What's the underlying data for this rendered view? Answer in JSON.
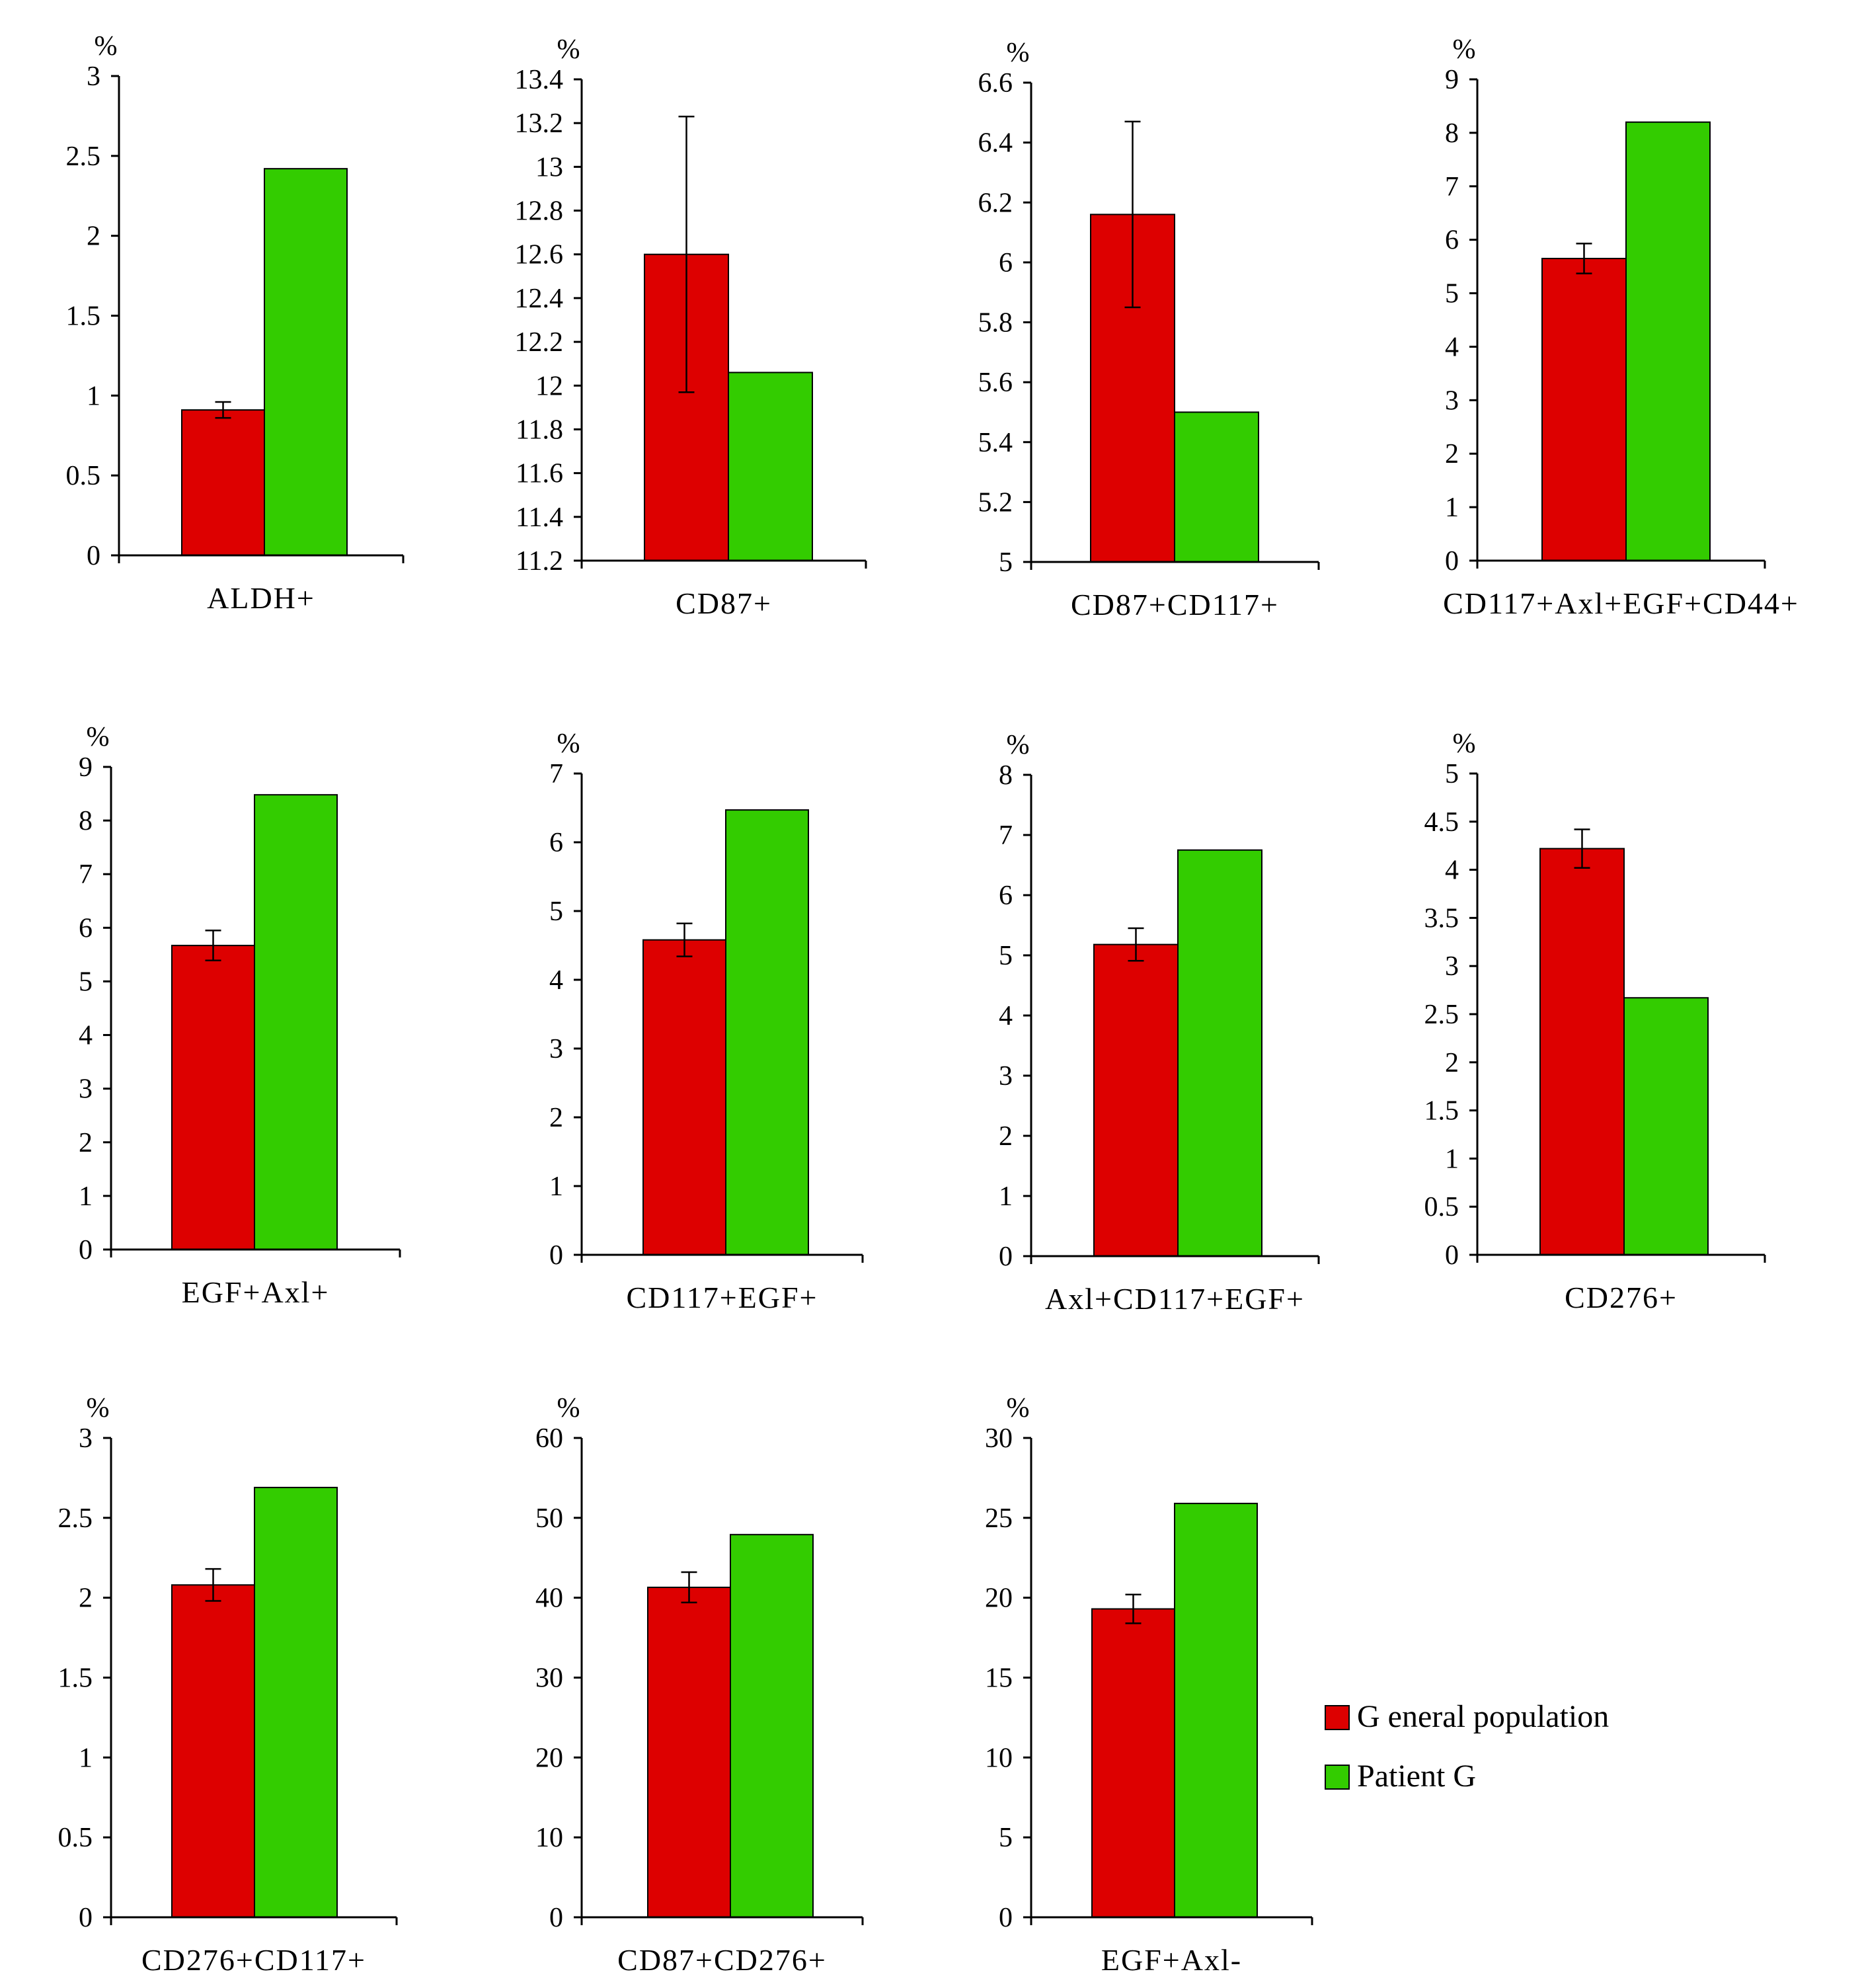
{
  "legend": {
    "items": [
      {
        "label": "G eneral population",
        "color": "#dd0000"
      },
      {
        "label": "Patient G",
        "color": "#33cc00"
      }
    ],
    "placement": "right, third row"
  },
  "colors": {
    "general_population": "#dd0000",
    "patient": "#33cc00",
    "bar_outline": "#000000",
    "axis": "#000000"
  },
  "chart_data": [
    {
      "type": "bar",
      "ylabel": "%",
      "xlabel": "",
      "categories": [
        "ALDH+"
      ],
      "ylim": [
        0,
        3
      ],
      "yticks": [
        "0",
        "0.5",
        "1",
        "1.5",
        "2",
        "2.5",
        "3"
      ],
      "series": [
        {
          "name": "G eneral population",
          "values": [
            0.91
          ],
          "error": [
            0.05
          ]
        },
        {
          "name": "Patient G",
          "values": [
            2.42
          ]
        }
      ]
    },
    {
      "type": "bar",
      "ylabel": "%",
      "xlabel": "",
      "categories": [
        "CD87+"
      ],
      "ylim": [
        11.2,
        13.4
      ],
      "yticks": [
        "11.2",
        "11.4",
        "11.6",
        "11.8",
        "12",
        "12.2",
        "12.4",
        "12.6",
        "12.8",
        "13",
        "13.2",
        "13.4"
      ],
      "series": [
        {
          "name": "G eneral population",
          "values": [
            12.6
          ],
          "error": [
            0.63
          ]
        },
        {
          "name": "Patient G",
          "values": [
            12.06
          ]
        }
      ]
    },
    {
      "type": "bar",
      "ylabel": "%",
      "xlabel": "",
      "categories": [
        "CD87+CD117+"
      ],
      "ylim": [
        5,
        6.6
      ],
      "yticks": [
        "5",
        "5.2",
        "5.4",
        "5.6",
        "5.8",
        "6",
        "6.2",
        "6.4",
        "6.6"
      ],
      "series": [
        {
          "name": "G eneral population",
          "values": [
            6.16
          ],
          "error": [
            0.31
          ]
        },
        {
          "name": "Patient G",
          "values": [
            5.5
          ]
        }
      ]
    },
    {
      "type": "bar",
      "ylabel": "%",
      "xlabel": "",
      "categories": [
        "CD117+Axl+EGF+CD44+"
      ],
      "ylim": [
        0,
        9
      ],
      "yticks": [
        "0",
        "1",
        "2",
        "3",
        "4",
        "5",
        "6",
        "7",
        "8",
        "9"
      ],
      "series": [
        {
          "name": "G eneral population",
          "values": [
            5.65
          ],
          "error": [
            0.28
          ]
        },
        {
          "name": "Patient G",
          "values": [
            8.2
          ]
        }
      ]
    },
    {
      "type": "bar",
      "ylabel": "%",
      "xlabel": "",
      "categories": [
        "EGF+Axl+"
      ],
      "ylim": [
        0,
        9
      ],
      "yticks": [
        "0",
        "1",
        "2",
        "3",
        "4",
        "5",
        "6",
        "7",
        "8",
        "9"
      ],
      "series": [
        {
          "name": "G eneral population",
          "values": [
            5.67
          ],
          "error": [
            0.28
          ]
        },
        {
          "name": "Patient G",
          "values": [
            8.48
          ]
        }
      ]
    },
    {
      "type": "bar",
      "ylabel": "%",
      "xlabel": "",
      "categories": [
        "CD117+EGF+"
      ],
      "ylim": [
        0,
        7
      ],
      "yticks": [
        "0",
        "1",
        "2",
        "3",
        "4",
        "5",
        "6",
        "7"
      ],
      "series": [
        {
          "name": "G eneral population",
          "values": [
            4.58
          ],
          "error": [
            0.24
          ]
        },
        {
          "name": "Patient G",
          "values": [
            6.47
          ]
        }
      ]
    },
    {
      "type": "bar",
      "ylabel": "%",
      "xlabel": "",
      "categories": [
        "Axl+CD117+EGF+"
      ],
      "ylim": [
        0,
        8
      ],
      "yticks": [
        "0",
        "1",
        "2",
        "3",
        "4",
        "5",
        "6",
        "7",
        "8"
      ],
      "series": [
        {
          "name": "G eneral population",
          "values": [
            5.18
          ],
          "error": [
            0.27
          ]
        },
        {
          "name": "Patient G",
          "values": [
            6.75
          ]
        }
      ]
    },
    {
      "type": "bar",
      "ylabel": "%",
      "xlabel": "",
      "categories": [
        "CD276+"
      ],
      "ylim": [
        0,
        5
      ],
      "yticks": [
        "0",
        "0.5",
        "1",
        "1.5",
        "2",
        "2.5",
        "3",
        "3.5",
        "4",
        "4.5",
        "5"
      ],
      "series": [
        {
          "name": "G eneral population",
          "values": [
            4.22
          ],
          "error": [
            0.2
          ]
        },
        {
          "name": "Patient G",
          "values": [
            2.67
          ]
        }
      ]
    },
    {
      "type": "bar",
      "ylabel": "%",
      "xlabel": "",
      "categories": [
        "CD276+CD117+"
      ],
      "ylim": [
        0,
        3
      ],
      "yticks": [
        "0",
        "0.5",
        "1",
        "1.5",
        "2",
        "2.5",
        "3"
      ],
      "series": [
        {
          "name": "G eneral population",
          "values": [
            2.08
          ],
          "error": [
            0.1
          ]
        },
        {
          "name": "Patient G",
          "values": [
            2.69
          ]
        }
      ]
    },
    {
      "type": "bar",
      "ylabel": "%",
      "xlabel": "",
      "categories": [
        "CD87+CD276+"
      ],
      "ylim": [
        0,
        60
      ],
      "yticks": [
        "0",
        "10",
        "20",
        "30",
        "40",
        "50",
        "60"
      ],
      "series": [
        {
          "name": "G eneral population",
          "values": [
            41.3
          ],
          "error": [
            1.9
          ]
        },
        {
          "name": "Patient G",
          "values": [
            47.9
          ]
        }
      ]
    },
    {
      "type": "bar",
      "ylabel": "%",
      "xlabel": "",
      "categories": [
        "EGF+Axl-"
      ],
      "ylim": [
        0,
        30
      ],
      "yticks": [
        "0",
        "5",
        "10",
        "15",
        "20",
        "25",
        "30"
      ],
      "series": [
        {
          "name": "G eneral population",
          "values": [
            19.3
          ],
          "error": [
            0.9
          ]
        },
        {
          "name": "Patient G",
          "values": [
            25.9
          ]
        }
      ]
    }
  ]
}
